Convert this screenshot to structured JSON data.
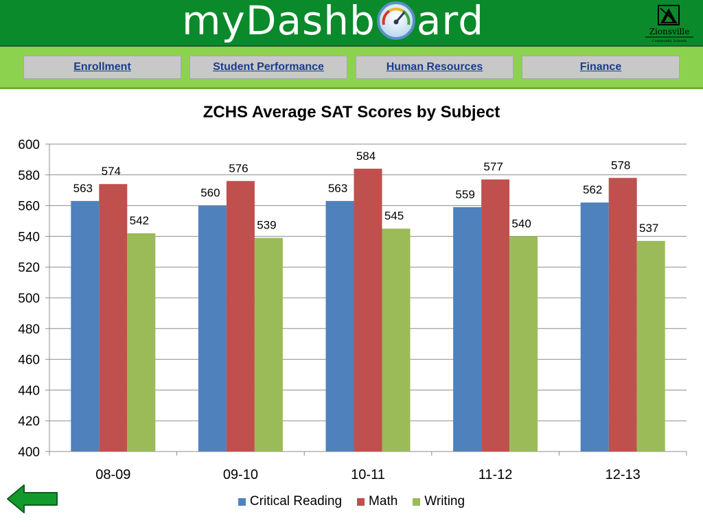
{
  "header": {
    "logo_left": "myDashb",
    "logo_right": "ard",
    "logo_icon": "gauge-icon",
    "brand_name": "Zionsville",
    "brand_sub": "Community Schools"
  },
  "nav": {
    "items": [
      {
        "label": "Enrollment"
      },
      {
        "label": "Student Performance"
      },
      {
        "label": "Human Resources"
      },
      {
        "label": "Finance"
      }
    ]
  },
  "colors": {
    "header": "#0a8a2a",
    "navband": "#8dd24f",
    "critical_reading": "#4f81bd",
    "math": "#c0504d",
    "writing": "#9bbb59"
  },
  "chart_data": {
    "type": "bar",
    "title": "ZCHS Average SAT Scores by Subject",
    "categories": [
      "08-09",
      "09-10",
      "10-11",
      "11-12",
      "12-13"
    ],
    "series": [
      {
        "name": "Critical Reading",
        "values": [
          563,
          560,
          563,
          559,
          562
        ],
        "color": "#4f81bd"
      },
      {
        "name": "Math",
        "values": [
          574,
          576,
          584,
          577,
          578
        ],
        "color": "#c0504d"
      },
      {
        "name": "Writing",
        "values": [
          542,
          539,
          545,
          540,
          537
        ],
        "color": "#9bbb59"
      }
    ],
    "ylim": [
      400,
      600
    ],
    "yticks": [
      "400",
      "420",
      "440",
      "460",
      "480",
      "500",
      "520",
      "540",
      "560",
      "580",
      "600"
    ],
    "grid": true,
    "legend": "bottom",
    "xlabel": "",
    "ylabel": ""
  },
  "back_icon": "back-arrow-icon"
}
